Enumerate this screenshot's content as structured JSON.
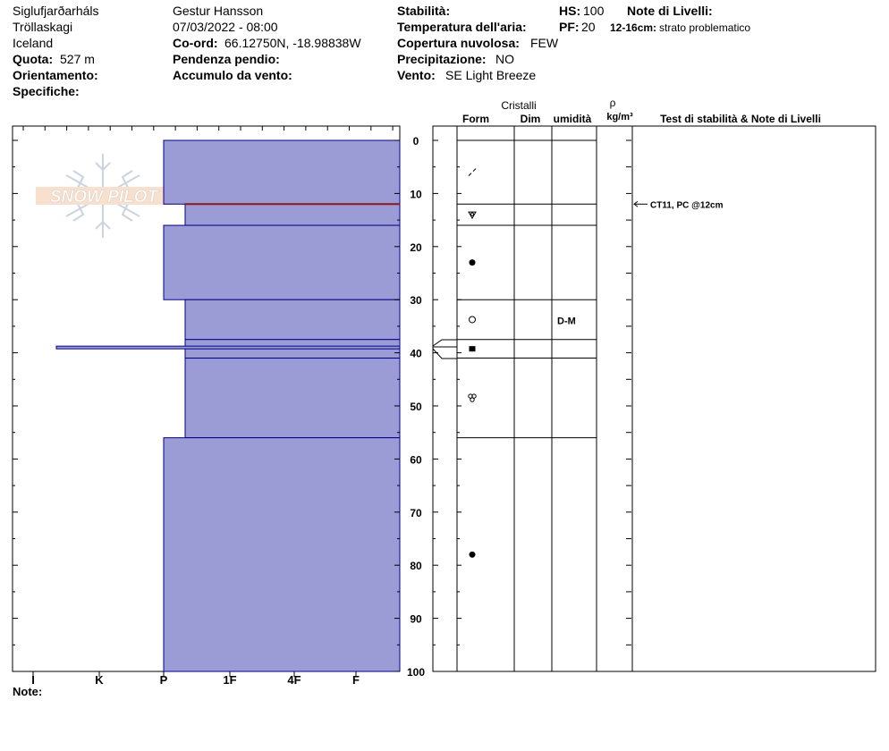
{
  "header": {
    "location": "Siglufjarðarháls",
    "region": "Tröllaskagi",
    "country": "Iceland",
    "elevation_label": "Quota:",
    "elevation_value": "527 m",
    "aspect_label": "Orientamento:",
    "specifics_label": "Specifiche:",
    "observer": "Gestur Hansson",
    "datetime": "07/03/2022 - 08:00",
    "coord_label": "Co-ord:",
    "coord_value": "66.12750N, -18.98838W",
    "slope_label": "Pendenza pendio:",
    "wind_loading_label": "Accumulo da vento:",
    "stability_label": "Stabilità:",
    "air_temp_label": "Temperatura dell'aria:",
    "cloud_label": "Copertura nuvolosa:",
    "cloud_value": "FEW",
    "precip_label": "Precipitazione:",
    "precip_value": "NO",
    "wind_label": "Vento:",
    "wind_value": "SE  Light Breeze",
    "hs_label": "HS:",
    "hs_value": "100",
    "pf_label": "PF:",
    "pf_value": "20",
    "layer_notes_label": "Note di Livelli:",
    "problem_range": "12-16cm:",
    "problem_text": "strato problematico"
  },
  "logo_text": "SNOW PILOT",
  "notes_label": "Note:",
  "columns": {
    "crystals": "Cristalli",
    "form": "Form",
    "size": "Dim",
    "moisture": "umidità",
    "rho": "ρ",
    "density_unit": "kg/m³",
    "tests": "Test di stabilità & Note di Livelli"
  },
  "colors": {
    "layer_fill": "#9b9bd6",
    "layer_stroke": "#00008b",
    "weak_line": "#8b1a1a"
  },
  "chart_data": {
    "type": "snow_profile",
    "depth_axis": {
      "min": 0,
      "max": 100,
      "ticks": [
        0,
        10,
        20,
        30,
        40,
        50,
        60,
        70,
        80,
        90,
        100
      ]
    },
    "hardness_axis": {
      "ticks": [
        "I",
        "K",
        "P",
        "1F",
        "4F",
        "F"
      ]
    },
    "layers": [
      {
        "top": 0,
        "bottom": 12,
        "hardness": "P",
        "form": "decomposing"
      },
      {
        "top": 12,
        "bottom": 16,
        "hardness": "P+",
        "form": "faceted"
      },
      {
        "top": 16,
        "bottom": 30,
        "hardness": "P",
        "form": "rounded"
      },
      {
        "top": 30,
        "bottom": 37.5,
        "hardness": "P+",
        "form": "melt-form",
        "moisture": "D-M"
      },
      {
        "top": 37.5,
        "bottom": 41,
        "hardness": "P+",
        "form": "ice"
      },
      {
        "top": 41,
        "bottom": 56,
        "hardness": "P+",
        "form": "faceted-mixed"
      },
      {
        "top": 56,
        "bottom": 100,
        "hardness": "P",
        "form": "rounded"
      }
    ],
    "ice_lens": {
      "depth": 39,
      "hardness": "K-"
    },
    "weak_layer_depth": 12,
    "stability_tests": [
      {
        "depth": 12,
        "label": "CT11, PC @12cm"
      }
    ]
  }
}
